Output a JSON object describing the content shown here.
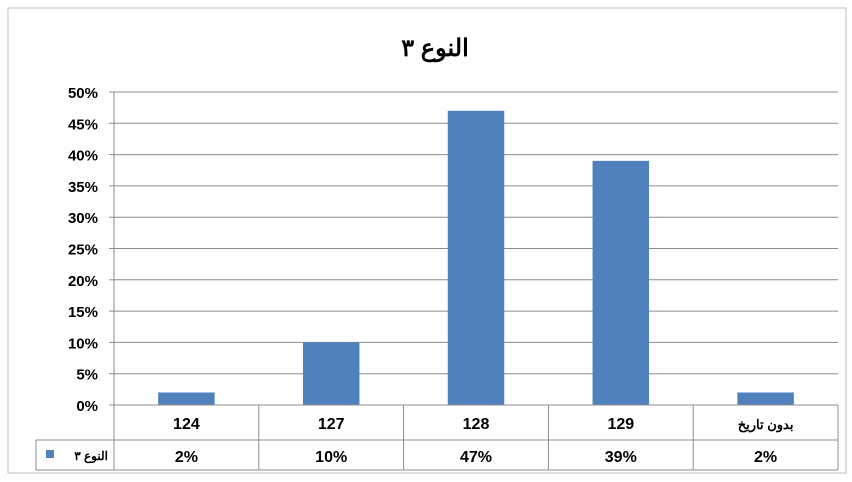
{
  "chart_data": {
    "type": "bar",
    "title": "النوع ٣",
    "categories": [
      "124",
      "127",
      "128",
      "129",
      "بدون تاريخ"
    ],
    "series": [
      {
        "name": "النوع ٣",
        "values": [
          2,
          10,
          47,
          39,
          2
        ],
        "labels": [
          "2%",
          "10%",
          "47%",
          "39%",
          "2%"
        ],
        "color": "#4f81bd"
      }
    ],
    "y_ticks": [
      "0%",
      "5%",
      "10%",
      "15%",
      "20%",
      "25%",
      "30%",
      "35%",
      "40%",
      "45%",
      "50%"
    ],
    "ylim": [
      0,
      50
    ],
    "grid": true,
    "legend": "data-table",
    "xlabel": "",
    "ylabel": ""
  }
}
